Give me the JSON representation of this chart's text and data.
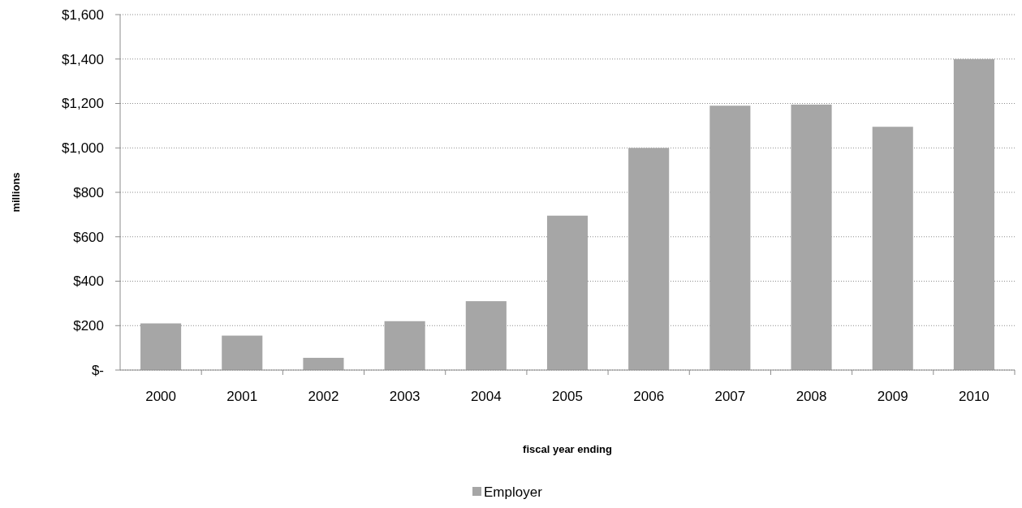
{
  "chart_data": {
    "type": "bar",
    "xlabel": "fiscal year ending",
    "ylabel": "millions",
    "categories": [
      "2000",
      "2001",
      "2002",
      "2003",
      "2004",
      "2005",
      "2006",
      "2007",
      "2008",
      "2009",
      "2010"
    ],
    "series": [
      {
        "name": "Employer",
        "color": "#a6a6a6",
        "values": [
          210,
          155,
          55,
          220,
          310,
          695,
          1000,
          1190,
          1195,
          1095,
          1400
        ]
      }
    ],
    "ylim": [
      0,
      1600
    ],
    "yticks": [
      {
        "value": 0,
        "label": "$-"
      },
      {
        "value": 200,
        "label": "$200"
      },
      {
        "value": 400,
        "label": "$400"
      },
      {
        "value": 600,
        "label": "$600"
      },
      {
        "value": 800,
        "label": "$800"
      },
      {
        "value": 1000,
        "label": "$1,000"
      },
      {
        "value": 1200,
        "label": "$1,200"
      },
      {
        "value": 1400,
        "label": "$1,400"
      },
      {
        "value": 1600,
        "label": "$1,600"
      }
    ],
    "grid": "y",
    "legend": "bottom"
  }
}
